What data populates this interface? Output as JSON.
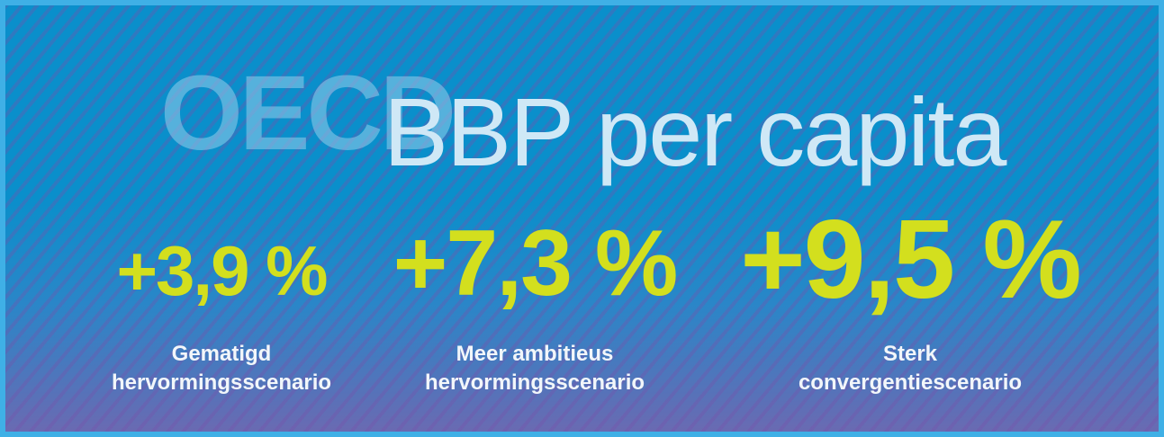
{
  "header": {
    "watermark": "OECD",
    "title": "BBP per capita"
  },
  "scenarios": [
    {
      "value": "+3,9 %",
      "caption": [
        "Gematigd",
        "hervormingsscenario"
      ]
    },
    {
      "value": "+7,3 %",
      "caption": [
        "Meer ambitieus",
        "hervormingsscenario"
      ]
    },
    {
      "value": "+9,5 %",
      "caption": [
        "Sterk",
        "convergentiescenario"
      ]
    }
  ]
}
